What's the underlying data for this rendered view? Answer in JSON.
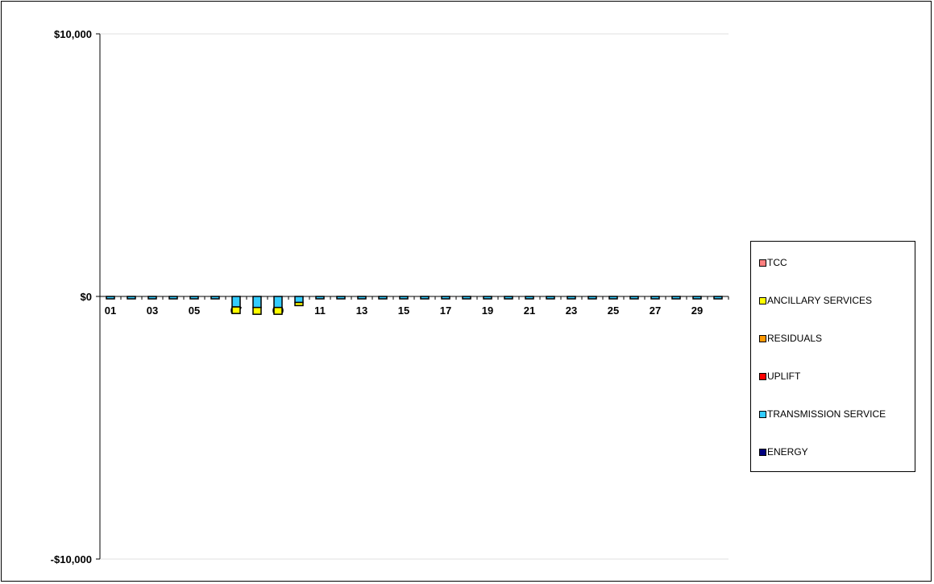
{
  "chart_data": {
    "type": "bar",
    "stacked": true,
    "title": "",
    "xlabel": "",
    "ylabel": "",
    "ylim": [
      -10000,
      10000
    ],
    "y_ticks": [
      "$10,000",
      "$0",
      "-$10,000"
    ],
    "y_tick_values": [
      10000,
      0,
      -10000
    ],
    "categories": [
      "01",
      "02",
      "03",
      "04",
      "05",
      "06",
      "07",
      "08",
      "09",
      "10",
      "11",
      "12",
      "13",
      "14",
      "15",
      "16",
      "17",
      "18",
      "19",
      "20",
      "21",
      "22",
      "23",
      "24",
      "25",
      "26",
      "27",
      "28",
      "29",
      "30"
    ],
    "x_tick_labels": [
      "01",
      "03",
      "05",
      "07",
      "09",
      "11",
      "13",
      "15",
      "17",
      "19",
      "21",
      "23",
      "25",
      "27",
      "29"
    ],
    "grid": false,
    "legend_position": "right",
    "series": [
      {
        "name": "TCC",
        "color": "#FF8080",
        "values": [
          0,
          0,
          0,
          0,
          0,
          0,
          0,
          0,
          0,
          0,
          0,
          0,
          0,
          0,
          0,
          0,
          0,
          0,
          0,
          0,
          0,
          0,
          0,
          0,
          0,
          0,
          0,
          0,
          0,
          0
        ]
      },
      {
        "name": "ANCILLARY SERVICES",
        "color": "#FFFF00",
        "values": [
          0,
          0,
          0,
          0,
          0,
          0,
          -250,
          -260,
          -260,
          -120,
          0,
          0,
          0,
          0,
          0,
          0,
          0,
          0,
          0,
          0,
          0,
          0,
          0,
          0,
          0,
          0,
          0,
          0,
          0,
          0
        ]
      },
      {
        "name": "RESIDUALS",
        "color": "#FF9900",
        "values": [
          0,
          0,
          0,
          0,
          0,
          0,
          0,
          0,
          0,
          0,
          0,
          0,
          0,
          0,
          0,
          0,
          0,
          0,
          0,
          0,
          0,
          0,
          0,
          0,
          0,
          0,
          0,
          0,
          0,
          0
        ]
      },
      {
        "name": "UPLIFT",
        "color": "#FF0000",
        "values": [
          0,
          0,
          0,
          0,
          0,
          0,
          0,
          0,
          0,
          0,
          0,
          0,
          0,
          0,
          0,
          0,
          0,
          0,
          0,
          0,
          0,
          0,
          0,
          0,
          0,
          0,
          0,
          0,
          0,
          0
        ]
      },
      {
        "name": "TRANSMISSION SERVICE",
        "color": "#33CCFF",
        "values": [
          -50,
          -40,
          -40,
          -40,
          -40,
          -50,
          -400,
          -420,
          -420,
          -230,
          -50,
          -40,
          -40,
          -50,
          -50,
          -50,
          -50,
          -50,
          -50,
          -40,
          -50,
          -50,
          -50,
          -50,
          -50,
          -50,
          -50,
          -40,
          -50,
          -50
        ]
      },
      {
        "name": "ENERGY",
        "color": "#000080",
        "values": [
          0,
          0,
          0,
          0,
          0,
          0,
          0,
          0,
          0,
          0,
          0,
          0,
          0,
          0,
          0,
          0,
          0,
          0,
          0,
          0,
          0,
          0,
          0,
          0,
          0,
          0,
          0,
          0,
          0,
          0
        ]
      }
    ]
  }
}
